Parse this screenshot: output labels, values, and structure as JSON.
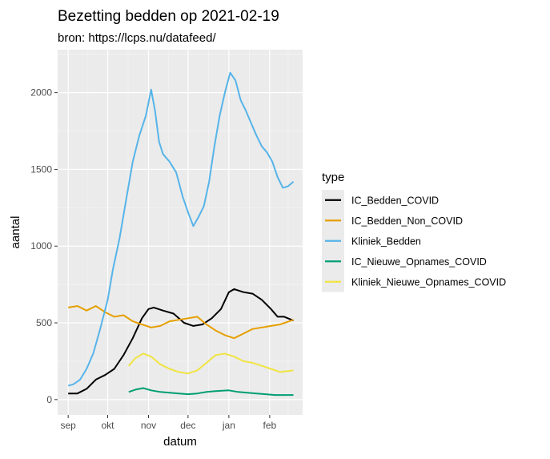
{
  "chart_data": {
    "type": "line",
    "title": "Bezetting bedden op 2021-02-19",
    "subtitle": "bron: https://lcps.nu/datafeed/",
    "xlabel": "datum",
    "ylabel": "aantal",
    "x_ticks": [
      "sep",
      "okt",
      "nov",
      "dec",
      "jan",
      "feb"
    ],
    "x_tick_dates": [
      "2020-09-01",
      "2020-10-01",
      "2020-11-01",
      "2020-12-01",
      "2021-01-01",
      "2021-02-01"
    ],
    "xlim": [
      "2020-08-24",
      "2021-02-26"
    ],
    "ylim": [
      -100,
      2280
    ],
    "y_ticks": [
      0,
      500,
      1000,
      1500,
      2000
    ],
    "grid": true,
    "legend_title": "type",
    "legend_position": "right",
    "series": [
      {
        "name": "IC_Bedden_COVID",
        "color": "#000000",
        "points": [
          [
            "2020-09-01",
            40
          ],
          [
            "2020-09-08",
            40
          ],
          [
            "2020-09-15",
            70
          ],
          [
            "2020-09-22",
            130
          ],
          [
            "2020-09-29",
            160
          ],
          [
            "2020-10-06",
            200
          ],
          [
            "2020-10-13",
            290
          ],
          [
            "2020-10-20",
            400
          ],
          [
            "2020-10-27",
            530
          ],
          [
            "2020-11-01",
            590
          ],
          [
            "2020-11-05",
            600
          ],
          [
            "2020-11-12",
            580
          ],
          [
            "2020-11-20",
            560
          ],
          [
            "2020-11-28",
            500
          ],
          [
            "2020-12-05",
            480
          ],
          [
            "2020-12-12",
            490
          ],
          [
            "2020-12-19",
            530
          ],
          [
            "2020-12-26",
            590
          ],
          [
            "2021-01-01",
            700
          ],
          [
            "2021-01-05",
            720
          ],
          [
            "2021-01-12",
            700
          ],
          [
            "2021-01-19",
            690
          ],
          [
            "2021-01-26",
            650
          ],
          [
            "2021-02-02",
            590
          ],
          [
            "2021-02-07",
            540
          ],
          [
            "2021-02-12",
            540
          ],
          [
            "2021-02-19",
            515
          ]
        ]
      },
      {
        "name": "IC_Bedden_Non_COVID",
        "color": "#E69F00",
        "points": [
          [
            "2020-09-01",
            600
          ],
          [
            "2020-09-08",
            610
          ],
          [
            "2020-09-15",
            580
          ],
          [
            "2020-09-22",
            610
          ],
          [
            "2020-09-29",
            570
          ],
          [
            "2020-10-06",
            540
          ],
          [
            "2020-10-13",
            550
          ],
          [
            "2020-10-20",
            510
          ],
          [
            "2020-10-27",
            490
          ],
          [
            "2020-11-03",
            470
          ],
          [
            "2020-11-10",
            480
          ],
          [
            "2020-11-17",
            510
          ],
          [
            "2020-11-24",
            520
          ],
          [
            "2020-12-01",
            530
          ],
          [
            "2020-12-08",
            540
          ],
          [
            "2020-12-15",
            490
          ],
          [
            "2020-12-22",
            450
          ],
          [
            "2020-12-29",
            420
          ],
          [
            "2021-01-05",
            400
          ],
          [
            "2021-01-12",
            430
          ],
          [
            "2021-01-19",
            460
          ],
          [
            "2021-01-26",
            470
          ],
          [
            "2021-02-02",
            480
          ],
          [
            "2021-02-09",
            490
          ],
          [
            "2021-02-19",
            520
          ]
        ]
      },
      {
        "name": "Kliniek_Bedden",
        "color": "#56B4E9",
        "points": [
          [
            "2020-09-01",
            90
          ],
          [
            "2020-09-05",
            100
          ],
          [
            "2020-09-10",
            130
          ],
          [
            "2020-09-15",
            200
          ],
          [
            "2020-09-20",
            300
          ],
          [
            "2020-09-25",
            450
          ],
          [
            "2020-10-01",
            650
          ],
          [
            "2020-10-05",
            850
          ],
          [
            "2020-10-10",
            1050
          ],
          [
            "2020-10-15",
            1300
          ],
          [
            "2020-10-20",
            1550
          ],
          [
            "2020-10-25",
            1720
          ],
          [
            "2020-10-30",
            1850
          ],
          [
            "2020-11-03",
            2020
          ],
          [
            "2020-11-06",
            1880
          ],
          [
            "2020-11-09",
            1680
          ],
          [
            "2020-11-12",
            1600
          ],
          [
            "2020-11-17",
            1550
          ],
          [
            "2020-11-22",
            1480
          ],
          [
            "2020-11-27",
            1320
          ],
          [
            "2020-12-01",
            1220
          ],
          [
            "2020-12-05",
            1130
          ],
          [
            "2020-12-09",
            1190
          ],
          [
            "2020-12-13",
            1260
          ],
          [
            "2020-12-17",
            1420
          ],
          [
            "2020-12-21",
            1650
          ],
          [
            "2020-12-25",
            1850
          ],
          [
            "2020-12-29",
            2000
          ],
          [
            "2021-01-02",
            2130
          ],
          [
            "2021-01-06",
            2080
          ],
          [
            "2021-01-10",
            1950
          ],
          [
            "2021-01-14",
            1880
          ],
          [
            "2021-01-18",
            1800
          ],
          [
            "2021-01-22",
            1720
          ],
          [
            "2021-01-26",
            1650
          ],
          [
            "2021-01-30",
            1610
          ],
          [
            "2021-02-03",
            1550
          ],
          [
            "2021-02-07",
            1450
          ],
          [
            "2021-02-11",
            1380
          ],
          [
            "2021-02-15",
            1390
          ],
          [
            "2021-02-19",
            1420
          ]
        ]
      },
      {
        "name": "IC_Nieuwe_Opnames_COVID",
        "color": "#009E73",
        "points": [
          [
            "2020-10-17",
            50
          ],
          [
            "2020-10-22",
            65
          ],
          [
            "2020-10-28",
            75
          ],
          [
            "2020-11-03",
            60
          ],
          [
            "2020-11-10",
            50
          ],
          [
            "2020-11-17",
            45
          ],
          [
            "2020-11-24",
            40
          ],
          [
            "2020-12-01",
            35
          ],
          [
            "2020-12-08",
            40
          ],
          [
            "2020-12-15",
            50
          ],
          [
            "2020-12-22",
            55
          ],
          [
            "2021-01-01",
            60
          ],
          [
            "2021-01-08",
            50
          ],
          [
            "2021-01-15",
            45
          ],
          [
            "2021-01-22",
            40
          ],
          [
            "2021-01-29",
            35
          ],
          [
            "2021-02-05",
            30
          ],
          [
            "2021-02-12",
            30
          ],
          [
            "2021-02-19",
            30
          ]
        ]
      },
      {
        "name": "Kliniek_Nieuwe_Opnames_COVID",
        "color": "#F0E442",
        "points": [
          [
            "2020-10-17",
            220
          ],
          [
            "2020-10-22",
            270
          ],
          [
            "2020-10-28",
            300
          ],
          [
            "2020-11-03",
            280
          ],
          [
            "2020-11-10",
            230
          ],
          [
            "2020-11-17",
            200
          ],
          [
            "2020-11-24",
            180
          ],
          [
            "2020-12-01",
            170
          ],
          [
            "2020-12-08",
            190
          ],
          [
            "2020-12-15",
            240
          ],
          [
            "2020-12-22",
            290
          ],
          [
            "2020-12-29",
            300
          ],
          [
            "2021-01-05",
            280
          ],
          [
            "2021-01-12",
            250
          ],
          [
            "2021-01-19",
            240
          ],
          [
            "2021-01-26",
            220
          ],
          [
            "2021-02-02",
            200
          ],
          [
            "2021-02-09",
            180
          ],
          [
            "2021-02-19",
            190
          ]
        ]
      }
    ]
  }
}
